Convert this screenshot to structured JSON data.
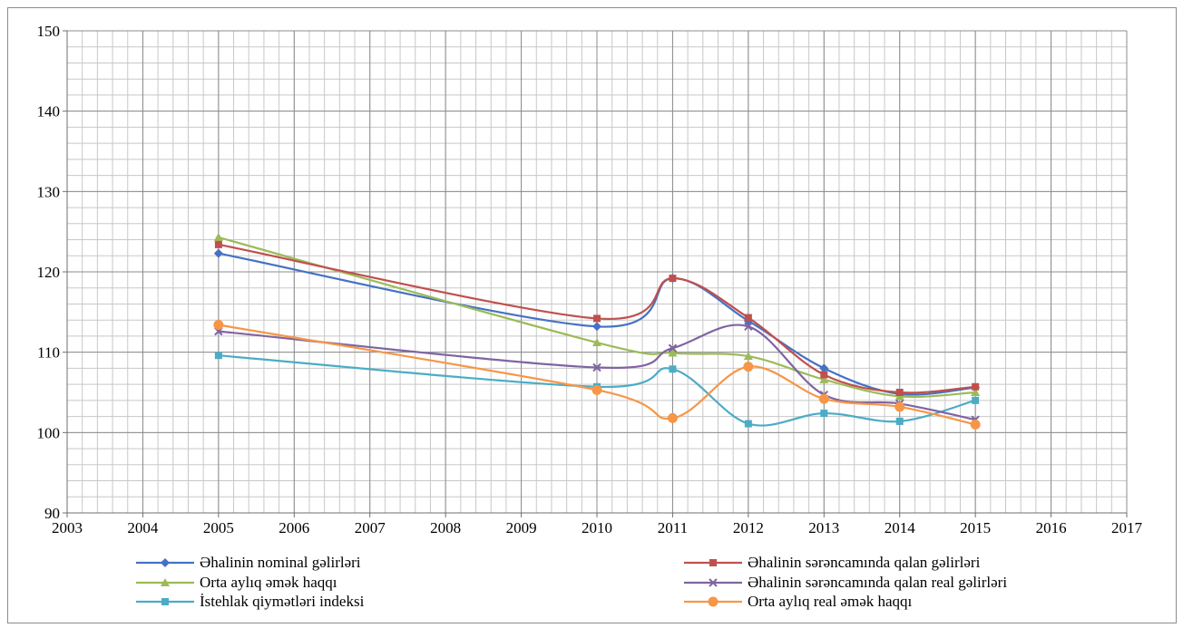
{
  "chart_data": {
    "type": "line",
    "title": "",
    "xlabel": "",
    "ylabel": "",
    "xlim": [
      2003,
      2017
    ],
    "ylim": [
      90,
      150
    ],
    "x_ticks": [
      "2003",
      "2004",
      "2005",
      "2006",
      "2007",
      "2008",
      "2009",
      "2010",
      "2011",
      "2012",
      "2013",
      "2014",
      "2015",
      "2016",
      "2017"
    ],
    "y_ticks": [
      "90",
      "100",
      "110",
      "120",
      "130",
      "140",
      "150"
    ],
    "grid": true,
    "legend_position": "bottom",
    "x": [
      2005,
      2010,
      2011,
      2012,
      2013,
      2014,
      2015
    ],
    "series": [
      {
        "name": "Əhalinin nominal gəlirləri",
        "color": "#4472C4",
        "marker": "diamond",
        "values": [
          122.3,
          113.2,
          119.2,
          113.9,
          108.0,
          104.8,
          105.6
        ]
      },
      {
        "name": "Orta aylıq əmək haqqı",
        "color": "#9BBB59",
        "marker": "triangle",
        "values": [
          124.3,
          111.2,
          109.9,
          109.5,
          106.6,
          104.5,
          105.0
        ]
      },
      {
        "name": "İstehlak qiymətləri indeksi",
        "color": "#4BACC6",
        "marker": "square",
        "values": [
          109.6,
          105.7,
          107.9,
          101.1,
          102.4,
          101.4,
          104.0
        ]
      },
      {
        "name": "Əhalinin sərəncamında qalan gəlirləri",
        "color": "#C0504D",
        "marker": "square",
        "values": [
          123.4,
          114.2,
          119.2,
          114.3,
          107.2,
          105.0,
          105.7
        ]
      },
      {
        "name": "Əhalinin sərəncamında qalan real gəlirləri",
        "color": "#8064A2",
        "marker": "x",
        "values": [
          112.6,
          108.1,
          110.5,
          113.2,
          104.7,
          103.6,
          101.6
        ]
      },
      {
        "name": "Orta aylıq real əmək haqqı",
        "color": "#F79646",
        "marker": "circle",
        "values": [
          113.4,
          105.3,
          101.8,
          108.2,
          104.2,
          103.2,
          101.0
        ]
      }
    ]
  }
}
